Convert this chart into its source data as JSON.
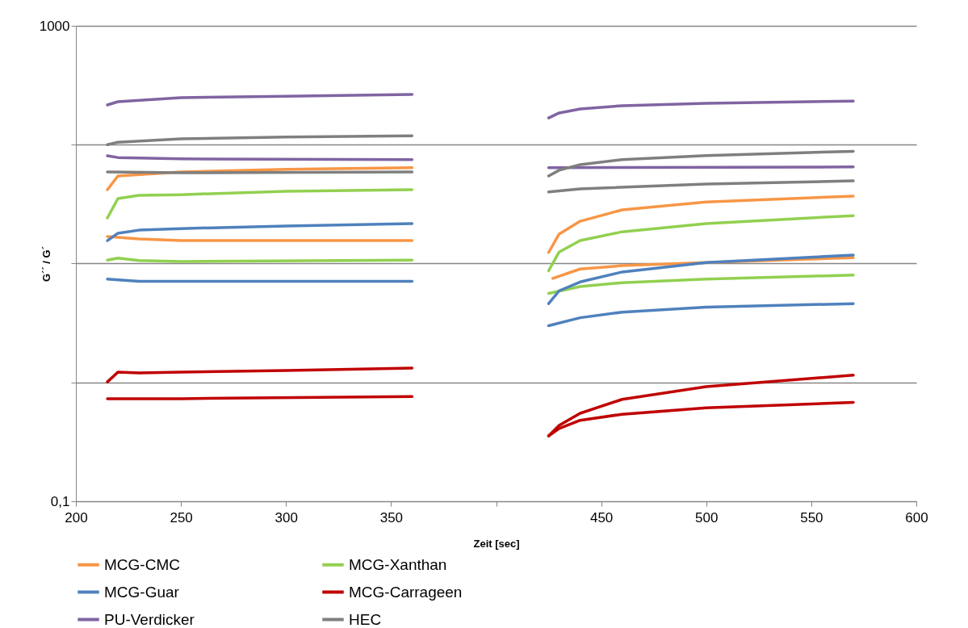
{
  "chart_data": {
    "type": "line",
    "xlabel": "Zeit [sec]",
    "ylabel": "G´´   /   G´",
    "xlim": [
      200,
      600
    ],
    "xticks": [
      200,
      250,
      300,
      350,
      {
        "value": 400,
        "label": null
      },
      450,
      500,
      550,
      600
    ],
    "ylim": [
      0.1,
      1000
    ],
    "yticks": [
      {
        "value": 0.1,
        "label": "0,1"
      },
      {
        "value": 1,
        "label": null
      },
      {
        "value": 10,
        "label": null
      },
      {
        "value": 100,
        "label": null
      },
      1000
    ],
    "log": true,
    "grid": "y",
    "legend": "bottom",
    "line_style": "solid",
    "marker": "none",
    "series": [
      {
        "name": "MCG-CMC",
        "color": "#f79646",
        "x": [
          215,
          220,
          250,
          300,
          360
        ],
        "values": [
          41.8,
          54.6,
          59,
          62,
          64
        ]
      },
      {
        "color": "#f79646",
        "x": [
          425,
          430,
          440,
          460,
          500,
          570
        ],
        "values": [
          12.4,
          17.7,
          22.7,
          28.3,
          33,
          36.9
        ]
      },
      {
        "color": "#f79646",
        "x": [
          215,
          230,
          250,
          360
        ],
        "values": [
          16.9,
          16.1,
          15.6,
          15.6
        ]
      },
      {
        "color": "#f79646",
        "x": [
          427,
          440,
          460,
          500,
          570
        ],
        "values": [
          7.5,
          9.0,
          9.6,
          10.2,
          11.2
        ]
      },
      {
        "name": "MCG-Xanthan",
        "color": "#92d050",
        "x": [
          215,
          220,
          230,
          250,
          300,
          360
        ],
        "values": [
          24.2,
          35.2,
          37.5,
          38,
          40.6,
          41.8
        ]
      },
      {
        "color": "#92d050",
        "x": [
          425,
          430,
          440,
          460,
          500,
          570
        ],
        "values": [
          8.7,
          12.5,
          15.6,
          18.5,
          21.7,
          25.3
        ]
      },
      {
        "color": "#92d050",
        "x": [
          215,
          220,
          230,
          250,
          360
        ],
        "values": [
          10.7,
          11.1,
          10.6,
          10.4,
          10.7
        ]
      },
      {
        "color": "#92d050",
        "x": [
          425,
          440,
          460,
          500,
          570
        ],
        "values": [
          5.6,
          6.4,
          6.9,
          7.4,
          8.0
        ]
      },
      {
        "name": "MCG-Guar",
        "color": "#4f81bd",
        "x": [
          215,
          220,
          230,
          250,
          300,
          360
        ],
        "values": [
          15.6,
          18,
          19.1,
          19.7,
          20.7,
          21.7
        ]
      },
      {
        "color": "#4f81bd",
        "x": [
          425,
          430,
          440,
          460,
          500,
          570
        ],
        "values": [
          4.6,
          5.9,
          7.0,
          8.5,
          10.2,
          11.8
        ]
      },
      {
        "color": "#4f81bd",
        "x": [
          215,
          230,
          360
        ],
        "values": [
          7.4,
          7.1,
          7.1
        ]
      },
      {
        "color": "#4f81bd",
        "x": [
          425,
          440,
          460,
          500,
          570
        ],
        "values": [
          3.0,
          3.5,
          3.9,
          4.3,
          4.6
        ]
      },
      {
        "name": "MCG-Carrageen",
        "color": "#c00000",
        "x": [
          215,
          220,
          230,
          250,
          300,
          360
        ],
        "values": [
          1.01,
          1.22,
          1.2,
          1.22,
          1.26,
          1.32
        ]
      },
      {
        "color": "#c00000",
        "x": [
          425,
          430,
          440,
          460,
          500,
          570
        ],
        "values": [
          0.355,
          0.435,
          0.55,
          0.72,
          0.92,
          1.15
        ]
      },
      {
        "color": "#c00000",
        "x": [
          215,
          250,
          360
        ],
        "values": [
          0.73,
          0.73,
          0.76
        ]
      },
      {
        "color": "#c00000",
        "x": [
          425,
          430,
          440,
          460,
          500,
          570
        ],
        "values": [
          0.355,
          0.41,
          0.48,
          0.54,
          0.61,
          0.68
        ]
      },
      {
        "name": "PU-Verdicker",
        "color": "#8064a2",
        "x": [
          215,
          220,
          250,
          300,
          360
        ],
        "values": [
          216,
          230,
          249,
          256,
          265
        ]
      },
      {
        "color": "#8064a2",
        "x": [
          425,
          430,
          440,
          460,
          500,
          570
        ],
        "values": [
          168,
          185,
          200,
          213,
          223,
          233
        ]
      },
      {
        "color": "#8064a2",
        "x": [
          215,
          220,
          250,
          360
        ],
        "values": [
          80.7,
          78,
          76,
          75
        ]
      },
      {
        "color": "#8064a2",
        "x": [
          425,
          570
        ],
        "values": [
          64,
          65
        ]
      },
      {
        "name": "HEC",
        "color": "#7f7f7f",
        "x": [
          215,
          220,
          250,
          300,
          360
        ],
        "values": [
          100,
          105,
          112,
          116,
          119
        ]
      },
      {
        "color": "#7f7f7f",
        "x": [
          425,
          430,
          440,
          460,
          500,
          570
        ],
        "values": [
          54.6,
          61,
          68,
          75,
          81,
          88
        ]
      },
      {
        "color": "#7f7f7f",
        "x": [
          215,
          250,
          360
        ],
        "values": [
          59,
          58,
          59
        ]
      },
      {
        "color": "#7f7f7f",
        "x": [
          425,
          440,
          500,
          570
        ],
        "values": [
          40,
          42.5,
          46.6,
          49.6
        ]
      }
    ]
  }
}
